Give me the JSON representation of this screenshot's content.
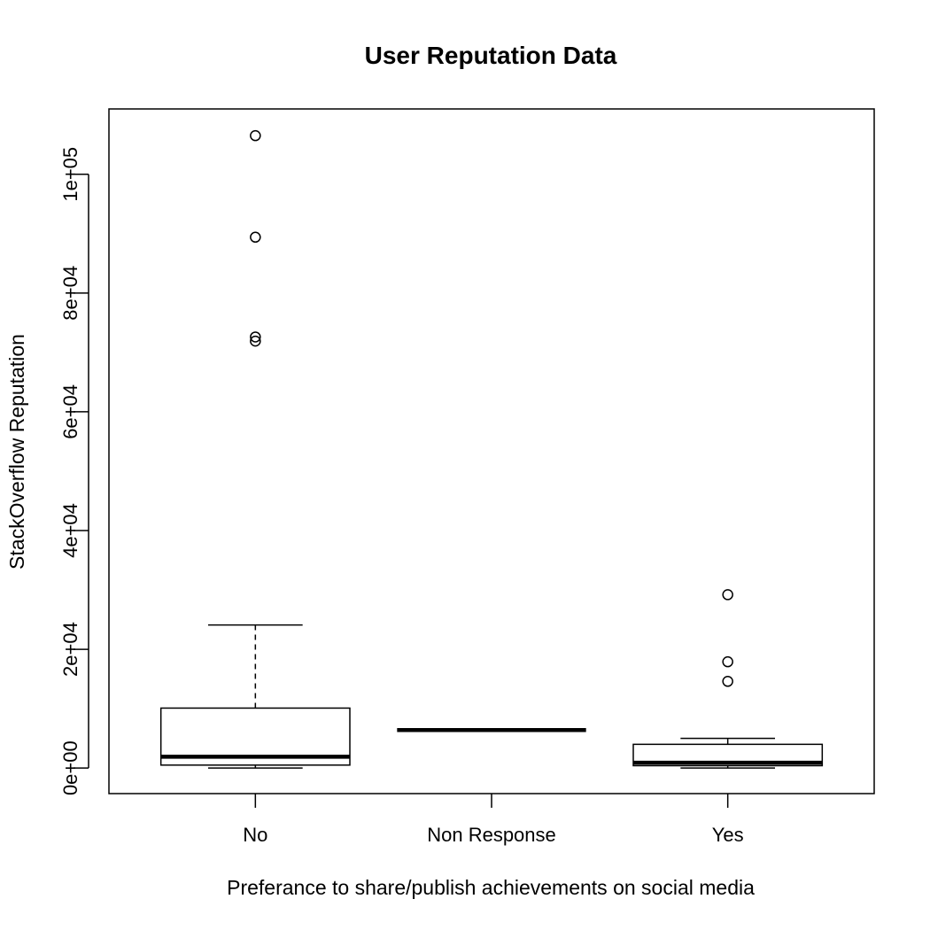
{
  "chart_data": {
    "type": "box",
    "title": "User Reputation Data",
    "xlabel": "Preferance to share/publish achievements on social media",
    "ylabel": "StackOverflow Reputation",
    "ylim": [
      -4300,
      111000
    ],
    "yticks": [
      0,
      20000,
      40000,
      60000,
      80000,
      100000
    ],
    "ytick_labels": [
      "0e+00",
      "2e+04",
      "4e+04",
      "6e+04",
      "8e+04",
      "1e+05"
    ],
    "categories": [
      "No",
      "Non Response",
      "Yes"
    ],
    "boxes": [
      {
        "category": "No",
        "whisker_low": 0,
        "q1": 500,
        "median": 1900,
        "q3": 10100,
        "whisker_high": 24100,
        "outliers": [
          106500,
          89400,
          72600,
          71900
        ]
      },
      {
        "category": "Non Response",
        "whisker_low": 6400,
        "q1": 6400,
        "median": 6400,
        "q3": 6400,
        "whisker_high": 6400,
        "outliers": []
      },
      {
        "category": "Yes",
        "whisker_low": 0,
        "q1": 400,
        "median": 900,
        "q3": 4000,
        "whisker_high": 5000,
        "outliers": [
          29200,
          17900,
          14600
        ]
      }
    ]
  }
}
